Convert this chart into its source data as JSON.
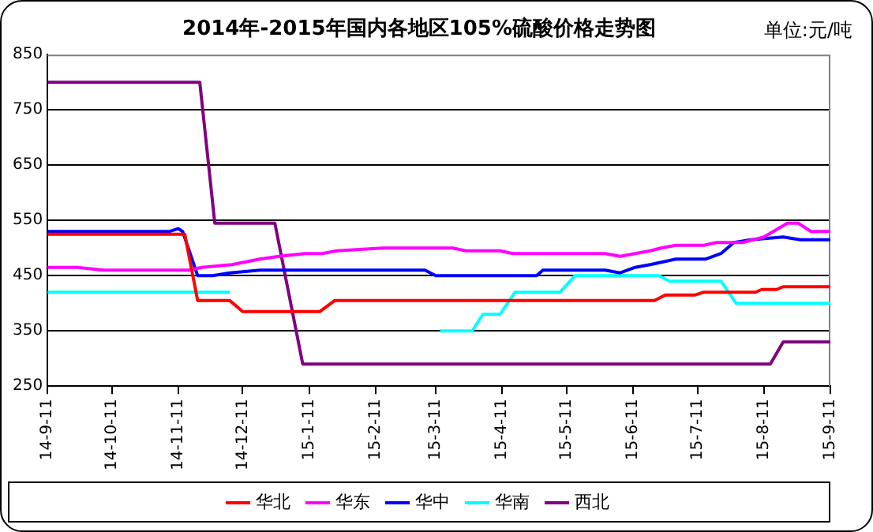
{
  "chart_data": {
    "type": "line",
    "title": "2014年-2015年国内各地区105%硫酸价格走势图",
    "annotations": [
      "单位:元/吨"
    ],
    "xlim": [
      "2014-09-11",
      "2015-09-11"
    ],
    "xticks": [
      {
        "value": "2014-09-11",
        "label": "14-9-11"
      },
      {
        "value": "2014-10-11",
        "label": "14-10-11"
      },
      {
        "value": "2014-11-11",
        "label": "14-11-11"
      },
      {
        "value": "2014-12-11",
        "label": "14-12-11"
      },
      {
        "value": "2015-01-11",
        "label": "15-1-11"
      },
      {
        "value": "2015-02-11",
        "label": "15-2-11"
      },
      {
        "value": "2015-03-11",
        "label": "15-3-11"
      },
      {
        "value": "2015-04-11",
        "label": "15-4-11"
      },
      {
        "value": "2015-05-11",
        "label": "15-5-11"
      },
      {
        "value": "2015-06-11",
        "label": "15-6-11"
      },
      {
        "value": "2015-07-11",
        "label": "15-7-11"
      },
      {
        "value": "2015-08-11",
        "label": "15-8-11"
      },
      {
        "value": "2015-09-11",
        "label": "15-9-11"
      }
    ],
    "ylim": [
      250,
      850
    ],
    "yticks": [
      250,
      350,
      450,
      550,
      650,
      750,
      850
    ],
    "grid": "y",
    "legend": "bottom",
    "marker": "none",
    "series": [
      {
        "name": "华北",
        "color": "#ff0000",
        "x": [
          "2014-09-11",
          "2014-11-14",
          "2014-11-20",
          "2014-12-05",
          "2014-12-11",
          "2015-01-16",
          "2015-01-23",
          "2015-06-21",
          "2015-06-26",
          "2015-07-10",
          "2015-07-14",
          "2015-08-07",
          "2015-08-10",
          "2015-08-17",
          "2015-08-20",
          "2015-09-11"
        ],
        "values": [
          525,
          525,
          405,
          405,
          385,
          385,
          405,
          405,
          415,
          415,
          420,
          420,
          425,
          425,
          430,
          430
        ]
      },
      {
        "name": "华东",
        "color": "#ff00ff",
        "x": [
          "2014-09-11",
          "2014-09-25",
          "2014-10-07",
          "2014-11-16",
          "2014-11-22",
          "2014-12-06",
          "2014-12-19",
          "2014-12-28",
          "2015-01-09",
          "2015-01-17",
          "2015-01-24",
          "2015-02-14",
          "2015-03-19",
          "2015-03-25",
          "2015-04-10",
          "2015-04-16",
          "2015-05-29",
          "2015-06-05",
          "2015-06-12",
          "2015-06-19",
          "2015-06-24",
          "2015-07-01",
          "2015-07-14",
          "2015-07-20",
          "2015-08-01",
          "2015-08-11",
          "2015-08-22",
          "2015-08-27",
          "2015-09-02",
          "2015-09-11"
        ],
        "values": [
          465,
          465,
          460,
          460,
          465,
          470,
          480,
          485,
          490,
          490,
          495,
          500,
          500,
          495,
          495,
          490,
          490,
          485,
          490,
          495,
          500,
          505,
          505,
          510,
          510,
          520,
          545,
          545,
          530,
          530
        ]
      },
      {
        "name": "华中",
        "color": "#0000ff",
        "x": [
          "2014-09-11",
          "2014-11-07",
          "2014-11-11",
          "2014-11-13",
          "2014-11-20",
          "2014-11-27",
          "2014-12-05",
          "2014-12-19",
          "2015-03-06",
          "2015-03-11",
          "2015-04-27",
          "2015-04-30",
          "2015-05-29",
          "2015-06-05",
          "2015-06-12",
          "2015-06-19",
          "2015-07-01",
          "2015-07-15",
          "2015-07-22",
          "2015-07-28",
          "2015-08-05",
          "2015-08-20",
          "2015-08-28",
          "2015-09-11"
        ],
        "values": [
          530,
          530,
          535,
          530,
          450,
          450,
          455,
          460,
          460,
          450,
          450,
          460,
          460,
          455,
          465,
          470,
          480,
          480,
          490,
          510,
          515,
          520,
          515,
          515
        ]
      },
      {
        "name": "华南",
        "color": "#00ffff",
        "x": [
          "2014-09-11",
          "2014-12-05",
          "2015-01-11",
          "2015-03-13",
          "2015-03-28",
          "2015-04-02",
          "2015-04-10",
          "2015-04-17",
          "2015-05-08",
          "2015-05-15",
          "2015-06-23",
          "2015-06-28",
          "2015-07-22",
          "2015-07-29",
          "2015-09-11"
        ],
        "values": [
          420,
          420,
          null,
          350,
          350,
          380,
          380,
          420,
          420,
          450,
          450,
          440,
          440,
          400,
          400
        ]
      },
      {
        "name": "西北",
        "color": "#800080",
        "x": [
          "2014-09-11",
          "2014-11-21",
          "2014-11-28",
          "2014-12-26",
          "2015-01-08",
          "2015-08-14",
          "2015-08-20",
          "2015-09-11"
        ],
        "values": [
          800,
          800,
          545,
          545,
          290,
          290,
          330,
          330
        ]
      }
    ]
  }
}
